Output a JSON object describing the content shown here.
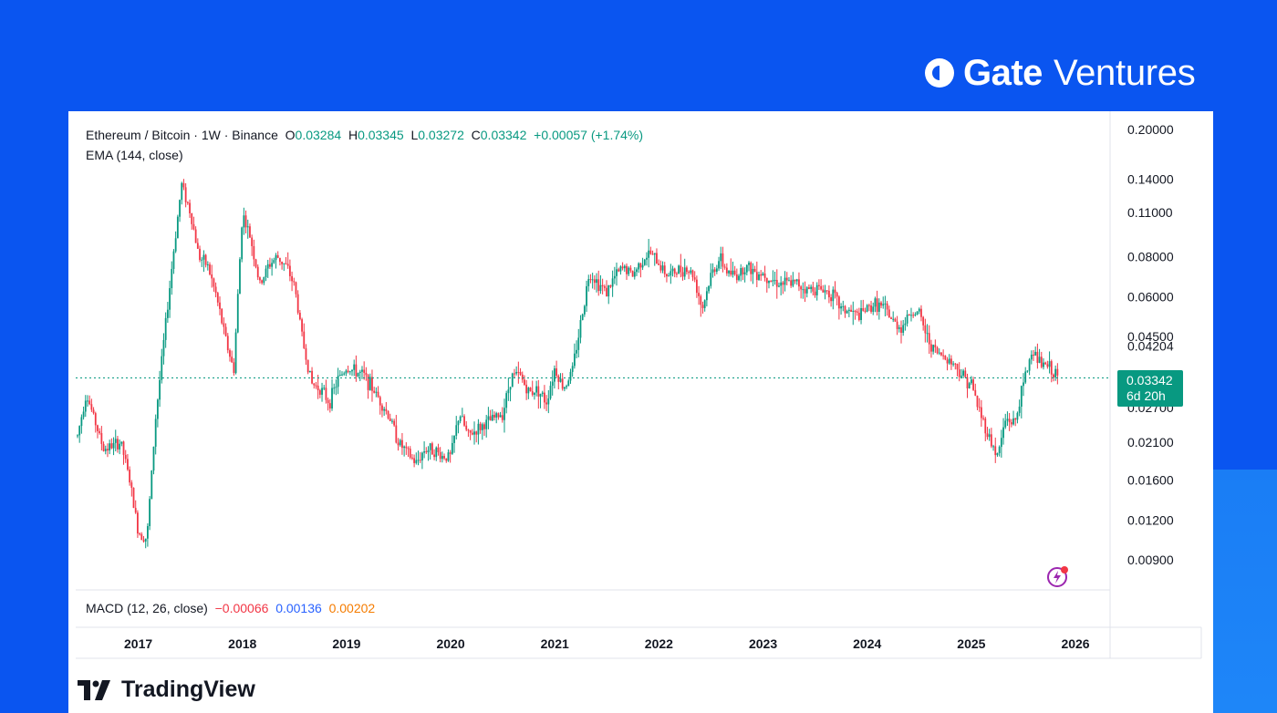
{
  "brand": {
    "gate_text": "Gate",
    "ventures_text": "Ventures",
    "logo_icon": "gate-logo-icon"
  },
  "tradingview": {
    "text": "TradingView",
    "logo_icon": "tradingview-logo-icon"
  },
  "legend": {
    "symbol": "Ethereum / Bitcoin · 1W · Binance",
    "open_label": "O",
    "open": "0.03284",
    "high_label": "H",
    "high": "0.03345",
    "low_label": "L",
    "low": "0.03272",
    "close_label": "C",
    "close": "0.03342",
    "change": "+0.00057 (+1.74%)",
    "indicator": "EMA (144, close)"
  },
  "macd": {
    "label": "MACD (12, 26, close)",
    "v1": "−0.00066",
    "v2": "0.00136",
    "v3": "0.00202"
  },
  "price_tag": {
    "price": "0.03342",
    "countdown": "6d 20h"
  },
  "colors": {
    "up": "#089981",
    "down": "#f23645",
    "background_blue": "#0a55f0"
  },
  "chart_data": {
    "type": "candlestick",
    "scale": "log",
    "ylim": [
      0.0075,
      0.2
    ],
    "last_price": 0.03342,
    "y_ticks": [
      {
        "value": 0.2,
        "label": "0.20000"
      },
      {
        "value": 0.14,
        "label": "0.14000"
      },
      {
        "value": 0.11,
        "label": "0.11000"
      },
      {
        "value": 0.08,
        "label": "0.08000"
      },
      {
        "value": 0.06,
        "label": "0.06000"
      },
      {
        "value": 0.045,
        "label": "0.04500"
      },
      {
        "value": 0.04204,
        "label": "0.04204"
      },
      {
        "value": 0.0335,
        "label": "0.03350"
      },
      {
        "value": 0.027,
        "label": "0.02700"
      },
      {
        "value": 0.021,
        "label": "0.02100"
      },
      {
        "value": 0.016,
        "label": "0.01600"
      },
      {
        "value": 0.012,
        "label": "0.01200"
      },
      {
        "value": 0.009,
        "label": "0.00900"
      }
    ],
    "x_ticks": [
      "2017",
      "2018",
      "2019",
      "2020",
      "2021",
      "2022",
      "2023",
      "2024",
      "2025",
      "2026"
    ],
    "x_start": "2016-06",
    "x_end": "2025-11",
    "trend": [
      [
        "2016-06",
        0.022
      ],
      [
        "2016-07",
        0.03
      ],
      [
        "2016-09",
        0.02
      ],
      [
        "2016-11",
        0.021
      ],
      [
        "2016-12",
        0.016
      ],
      [
        "2017-01",
        0.011
      ],
      [
        "2017-02",
        0.0105
      ],
      [
        "2017-03",
        0.025
      ],
      [
        "2017-04",
        0.045
      ],
      [
        "2017-05",
        0.08
      ],
      [
        "2017-06",
        0.135
      ],
      [
        "2017-07",
        0.11
      ],
      [
        "2017-08",
        0.08
      ],
      [
        "2017-09",
        0.075
      ],
      [
        "2017-10",
        0.06
      ],
      [
        "2017-11",
        0.045
      ],
      [
        "2017-12",
        0.035
      ],
      [
        "2018-01",
        0.11
      ],
      [
        "2018-02",
        0.09
      ],
      [
        "2018-03",
        0.065
      ],
      [
        "2018-04",
        0.075
      ],
      [
        "2018-05",
        0.08
      ],
      [
        "2018-06",
        0.075
      ],
      [
        "2018-07",
        0.065
      ],
      [
        "2018-08",
        0.043
      ],
      [
        "2018-09",
        0.032
      ],
      [
        "2018-10",
        0.031
      ],
      [
        "2018-11",
        0.028
      ],
      [
        "2018-12",
        0.033
      ],
      [
        "2019-01",
        0.036
      ],
      [
        "2019-02",
        0.035
      ],
      [
        "2019-03",
        0.034
      ],
      [
        "2019-04",
        0.031
      ],
      [
        "2019-05",
        0.028
      ],
      [
        "2019-06",
        0.025
      ],
      [
        "2019-07",
        0.021
      ],
      [
        "2019-09",
        0.018
      ],
      [
        "2019-10",
        0.02
      ],
      [
        "2019-11",
        0.02
      ],
      [
        "2019-12",
        0.019
      ],
      [
        "2020-01",
        0.019
      ],
      [
        "2020-02",
        0.026
      ],
      [
        "2020-03",
        0.022
      ],
      [
        "2020-04",
        0.023
      ],
      [
        "2020-05",
        0.024
      ],
      [
        "2020-06",
        0.025
      ],
      [
        "2020-07",
        0.026
      ],
      [
        "2020-08",
        0.034
      ],
      [
        "2020-09",
        0.034
      ],
      [
        "2020-10",
        0.03
      ],
      [
        "2020-11",
        0.031
      ],
      [
        "2020-12",
        0.028
      ],
      [
        "2021-01",
        0.036
      ],
      [
        "2021-02",
        0.031
      ],
      [
        "2021-03",
        0.035
      ],
      [
        "2021-04",
        0.05
      ],
      [
        "2021-05",
        0.072
      ],
      [
        "2021-06",
        0.066
      ],
      [
        "2021-07",
        0.062
      ],
      [
        "2021-08",
        0.07
      ],
      [
        "2021-09",
        0.074
      ],
      [
        "2021-10",
        0.07
      ],
      [
        "2021-11",
        0.078
      ],
      [
        "2021-12",
        0.082
      ],
      [
        "2022-01",
        0.076
      ],
      [
        "2022-02",
        0.07
      ],
      [
        "2022-03",
        0.072
      ],
      [
        "2022-04",
        0.074
      ],
      [
        "2022-05",
        0.07
      ],
      [
        "2022-06",
        0.055
      ],
      [
        "2022-07",
        0.07
      ],
      [
        "2022-08",
        0.079
      ],
      [
        "2022-09",
        0.071
      ],
      [
        "2022-10",
        0.07
      ],
      [
        "2022-11",
        0.075
      ],
      [
        "2022-12",
        0.072
      ],
      [
        "2023-01",
        0.071
      ],
      [
        "2023-02",
        0.068
      ],
      [
        "2023-03",
        0.066
      ],
      [
        "2023-04",
        0.066
      ],
      [
        "2023-05",
        0.066
      ],
      [
        "2023-06",
        0.063
      ],
      [
        "2023-07",
        0.064
      ],
      [
        "2023-08",
        0.063
      ],
      [
        "2023-09",
        0.061
      ],
      [
        "2023-10",
        0.055
      ],
      [
        "2023-11",
        0.054
      ],
      [
        "2023-12",
        0.052
      ],
      [
        "2024-01",
        0.055
      ],
      [
        "2024-02",
        0.057
      ],
      [
        "2024-03",
        0.055
      ],
      [
        "2024-04",
        0.05
      ],
      [
        "2024-05",
        0.048
      ],
      [
        "2024-06",
        0.054
      ],
      [
        "2024-07",
        0.053
      ],
      [
        "2024-08",
        0.044
      ],
      [
        "2024-09",
        0.04
      ],
      [
        "2024-10",
        0.039
      ],
      [
        "2024-11",
        0.037
      ],
      [
        "2024-12",
        0.034
      ],
      [
        "2025-01",
        0.032
      ],
      [
        "2025-02",
        0.026
      ],
      [
        "2025-03",
        0.022
      ],
      [
        "2025-04",
        0.019
      ],
      [
        "2025-05",
        0.025
      ],
      [
        "2025-06",
        0.024
      ],
      [
        "2025-07",
        0.032
      ],
      [
        "2025-08",
        0.041
      ],
      [
        "2025-09",
        0.037
      ],
      [
        "2025-10",
        0.036
      ],
      [
        "2025-11",
        0.0334
      ]
    ]
  }
}
